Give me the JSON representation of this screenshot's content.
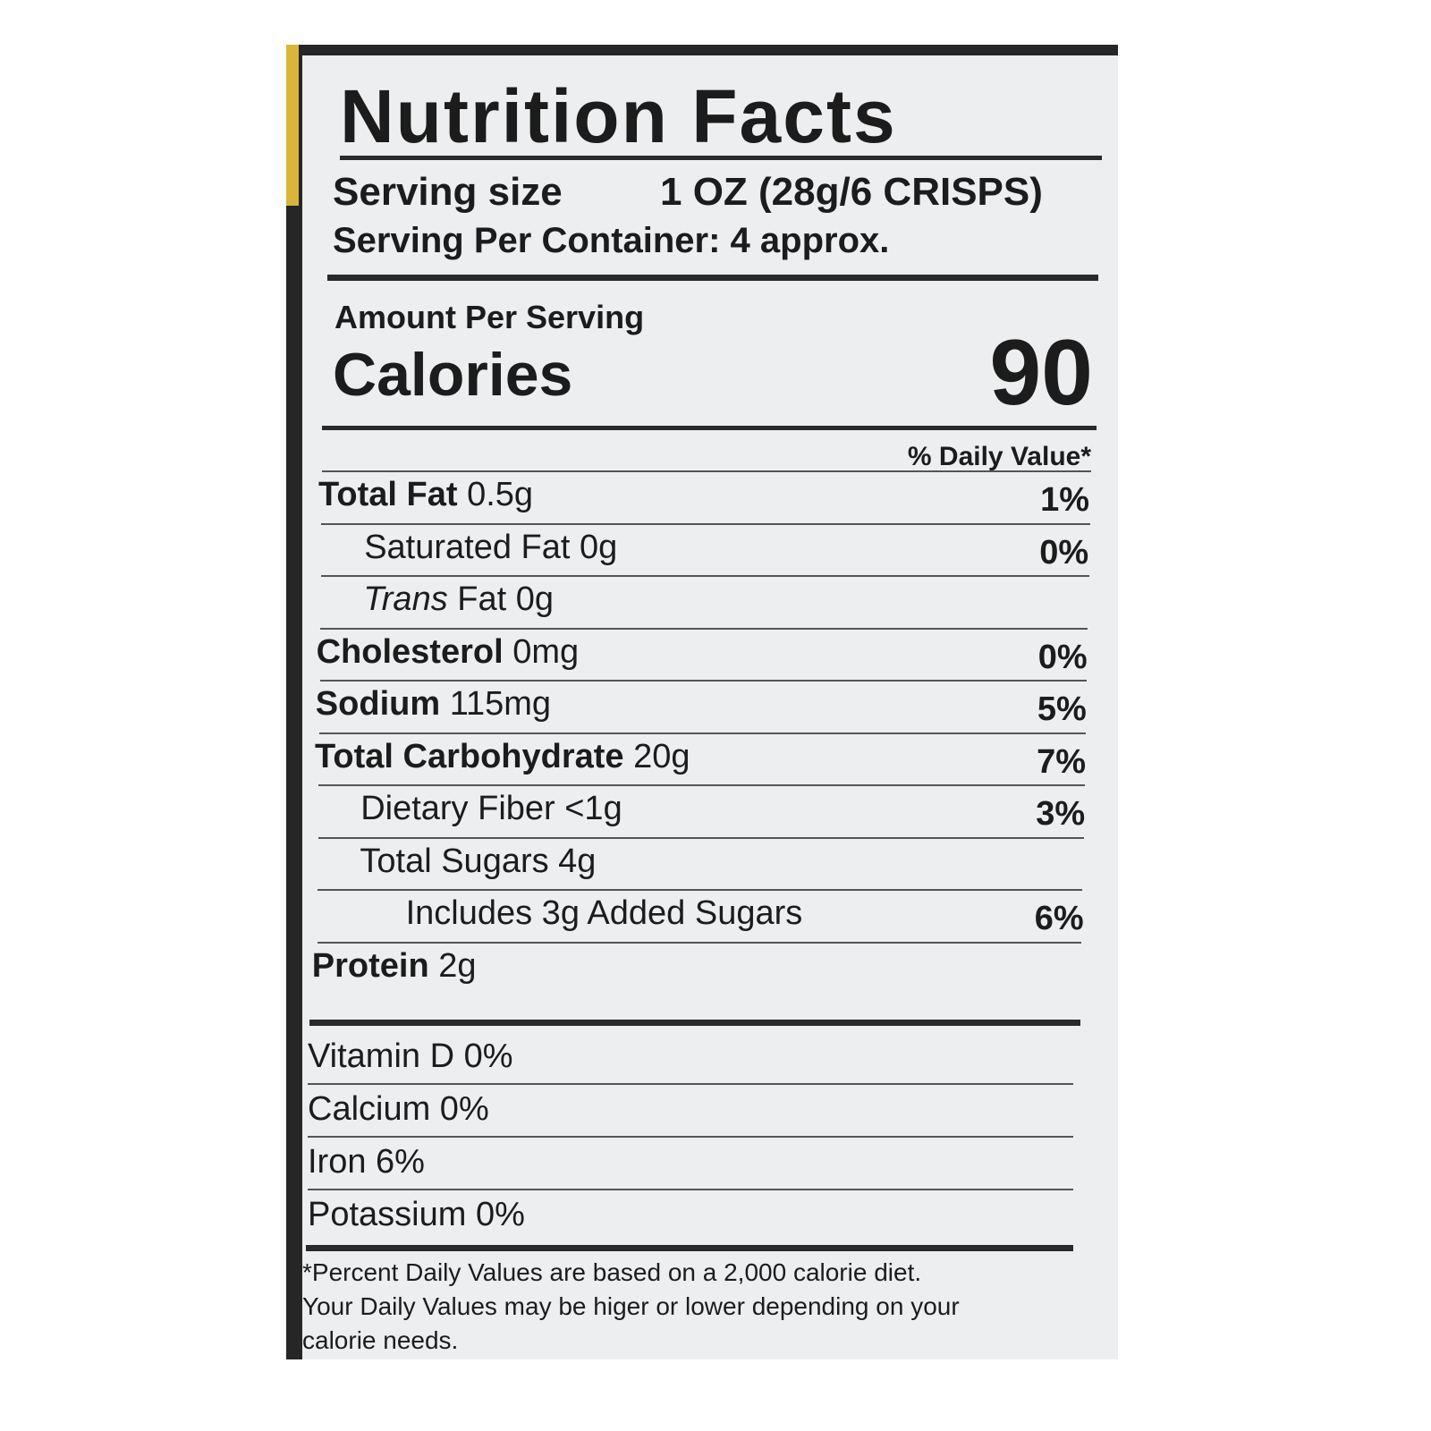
{
  "header": {
    "title": "Nutrition Facts",
    "serving_size_label": "Serving size",
    "serving_size_value": "1 OZ (28g/6 CRISPS)",
    "servings_per_container": "Serving Per Container:  4 approx."
  },
  "calories": {
    "amount_per_serving": "Amount Per Serving",
    "label": "Calories",
    "value": "90",
    "daily_value_header": "% Daily Value*"
  },
  "nutrients": [
    {
      "name": "Total Fat",
      "amount": "0.5g",
      "daily_value": "1%"
    },
    {
      "name": "Saturated Fat 0g",
      "daily_value": "0%"
    },
    {
      "italic": "Trans",
      "name": "Fat 0g"
    },
    {
      "name": "Cholesterol",
      "amount": "0mg",
      "daily_value": "0%"
    },
    {
      "name": "Sodium",
      "amount": "115mg",
      "daily_value": "5%"
    },
    {
      "name": "Total Carbohydrate",
      "amount": "20g",
      "daily_value": "7%"
    },
    {
      "name": "Dietary Fiber <1g",
      "daily_value": "3%"
    },
    {
      "name": "Total Sugars 4g"
    },
    {
      "name": "Includes 3g Added Sugars",
      "daily_value": "6%"
    },
    {
      "name": "Protein",
      "amount": "2g"
    }
  ],
  "vitamins": [
    "Vitamin D 0%",
    "Calcium 0%",
    "Iron 6%",
    "Potassium  0%"
  ],
  "footnote": [
    "*Percent Daily Values are based on a 2,000 calorie diet.",
    "Your Daily Values may be higer or lower depending on your",
    "calorie needs."
  ]
}
